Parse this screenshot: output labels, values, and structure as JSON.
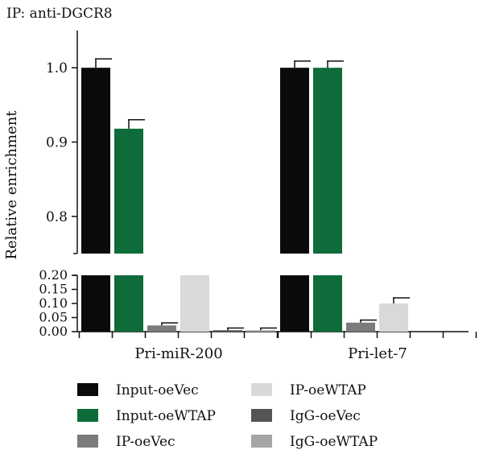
{
  "chart_data": {
    "type": "bar",
    "title": "IP: anti-DGCR8",
    "ylabel": "Relative enrichment",
    "xlabel": "",
    "categories": [
      "Pri-miR-200",
      "Pri-let-7"
    ],
    "axis_break": {
      "upper_range": [
        0.75,
        1.05
      ],
      "lower_range": [
        0.0,
        0.2
      ],
      "upper_ticks": [
        "0.8",
        "0.9",
        "1.0"
      ],
      "lower_ticks": [
        "0.00",
        "0.05",
        "0.10",
        "0.15",
        "0.20"
      ]
    },
    "series": [
      {
        "name": "Input-oeVec",
        "color": "#0a0a0a",
        "values": [
          1.0,
          1.0
        ],
        "errors": [
          0.012,
          0.009
        ]
      },
      {
        "name": "Input-oeWTAP",
        "color": "#0e6b3a",
        "values": [
          0.918,
          1.0
        ],
        "errors": [
          0.012,
          0.009
        ]
      },
      {
        "name": "IP-oeVec",
        "color": "#7b7b7b",
        "values": [
          0.022,
          0.032
        ],
        "errors": [
          0.009,
          0.009
        ]
      },
      {
        "name": "IP-oeWTAP",
        "color": "#d9d9d9",
        "values": [
          0.2,
          0.1
        ],
        "errors": [
          0.0,
          0.02
        ]
      },
      {
        "name": "IgG-oeVec",
        "color": "#545454",
        "values": [
          0.005,
          0.0
        ],
        "errors": [
          0.008,
          0.0
        ]
      },
      {
        "name": "IgG-oeWTAP",
        "color": "#a5a5a5",
        "values": [
          0.005,
          0.0
        ],
        "errors": [
          0.008,
          0.0
        ]
      }
    ],
    "legend_position": "bottom",
    "grid": false
  }
}
